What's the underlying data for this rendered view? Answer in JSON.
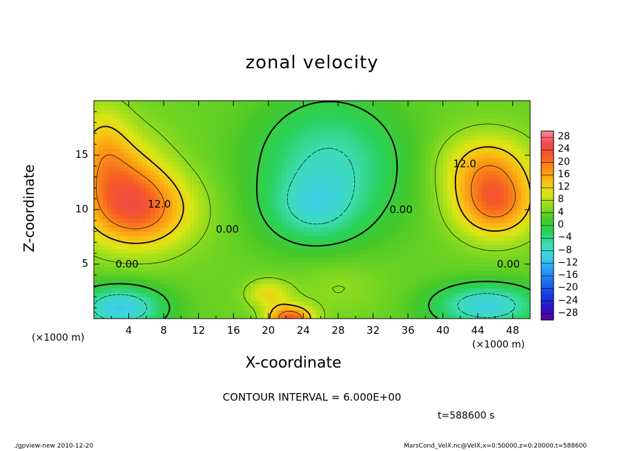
{
  "chart_data": {
    "type": "heatmap",
    "title": "zonal velocity",
    "xlabel": "X-coordinate",
    "ylabel": "Z-coordinate",
    "x_unit_left": "(×1000 m)",
    "x_unit_right": "(×1000 m)",
    "xlim": [
      0,
      50
    ],
    "ylim": [
      0,
      20
    ],
    "x_ticks": [
      "4",
      "8",
      "12",
      "16",
      "20",
      "24",
      "28",
      "32",
      "36",
      "40",
      "44",
      "48"
    ],
    "x_tick_values": [
      4,
      8,
      12,
      16,
      20,
      24,
      28,
      32,
      36,
      40,
      44,
      48
    ],
    "y_ticks": [
      "5",
      "10",
      "15"
    ],
    "y_tick_values": [
      5,
      10,
      15
    ],
    "colorbar": {
      "labels": [
        "28",
        "24",
        "20",
        "16",
        "12",
        "8",
        "4",
        "0",
        "−4",
        "−8",
        "−12",
        "−16",
        "−20",
        "−24",
        "−28"
      ],
      "levels": [
        28,
        24,
        20,
        16,
        12,
        8,
        4,
        0,
        -4,
        -8,
        -12,
        -16,
        -20,
        -24,
        -28
      ],
      "range": [
        -30,
        30
      ]
    },
    "contour_labels": [
      {
        "text": "12.0",
        "x": 7.5,
        "z": 10.5
      },
      {
        "text": "12.0",
        "x": 42.5,
        "z": 14.2
      },
      {
        "text": "0.00",
        "x": 3.8,
        "z": 5.0
      },
      {
        "text": "0.00",
        "x": 15.3,
        "z": 8.2
      },
      {
        "text": "0.00",
        "x": 35.2,
        "z": 10.0
      },
      {
        "text": "0.00",
        "x": 47.5,
        "z": 5.0
      }
    ],
    "contour_interval_text": "CONTOUR INTERVAL = 6.000E+00",
    "time_text": "t=588600 s",
    "features": [
      {
        "x": 5,
        "z": 10,
        "value": 18,
        "sx": 6,
        "sz": 3.5
      },
      {
        "x": 3,
        "z": 13.5,
        "value": 10,
        "sx": 5,
        "sz": 4
      },
      {
        "x": 1,
        "z": 16,
        "value": 8,
        "sx": 3,
        "sz": 4
      },
      {
        "x": 46,
        "z": 10.5,
        "value": 17,
        "sx": 4.5,
        "sz": 3
      },
      {
        "x": 45,
        "z": 14,
        "value": 12,
        "sx": 5,
        "sz": 3
      },
      {
        "x": 27,
        "z": 14,
        "value": -9,
        "sx": 8,
        "sz": 6
      },
      {
        "x": 25,
        "z": 10,
        "value": -5,
        "sx": 5,
        "sz": 3
      },
      {
        "x": 3,
        "z": 1,
        "value": -13,
        "sx": 5,
        "sz": 2
      },
      {
        "x": 45,
        "z": 1.2,
        "value": -12,
        "sx": 6,
        "sz": 2
      },
      {
        "x": 22.5,
        "z": 0,
        "value": 20,
        "sx": 2.5,
        "sz": 1.2
      },
      {
        "x": 20,
        "z": 2.3,
        "value": 9,
        "sx": 2.5,
        "sz": 1.3
      },
      {
        "x": 28,
        "z": 3,
        "value": 4,
        "sx": 5,
        "sz": 2.5
      }
    ],
    "background_value": 4
  },
  "footer": {
    "left": "./gpview-new  2010-12-20",
    "right": "MarsCond_VelX.nc@VelX,x=0:50000,z=0:20000,t=588600"
  }
}
